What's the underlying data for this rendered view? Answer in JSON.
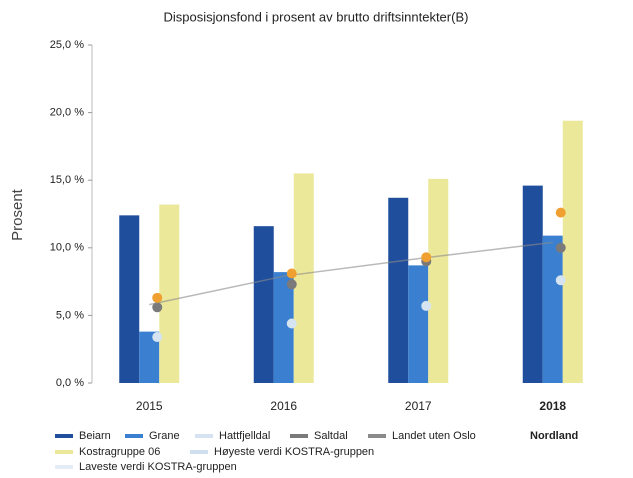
{
  "chart_data": {
    "type": "bar",
    "title": "Disposisjonsfond i prosent av brutto driftsinntekter(B)",
    "y_label": "Prosent",
    "categories": [
      "2015",
      "2016",
      "2017",
      "2018"
    ],
    "ylim": [
      0,
      25
    ],
    "yticks": [
      {
        "value": 0,
        "label": "0,0 %"
      },
      {
        "value": 5,
        "label": "5,0 %"
      },
      {
        "value": 10,
        "label": "10,0 %"
      },
      {
        "value": 15,
        "label": "15,0 %"
      },
      {
        "value": 20,
        "label": "20,0 %"
      },
      {
        "value": 25,
        "label": "25,0 %"
      }
    ],
    "grid": false,
    "series": [
      {
        "name": "Beiarn",
        "color": "#1f4e9c",
        "mark": "bar",
        "values": [
          12.4,
          11.6,
          13.7,
          14.6
        ]
      },
      {
        "name": "Grane",
        "color": "#3a7fd0",
        "mark": "bar",
        "values": [
          3.8,
          8.2,
          8.7,
          10.9
        ]
      },
      {
        "name": "Hattfjelldal",
        "color": "#d6e4f2",
        "mark": "dot",
        "values": [
          3.4,
          4.4,
          5.7,
          7.6
        ]
      },
      {
        "name": "Saltdal",
        "color": "#7a7a7a",
        "mark": "dot",
        "values": [
          5.6,
          7.3,
          9.0,
          10.0
        ]
      },
      {
        "name": "Landet uten Oslo",
        "color": "#8a8a8a",
        "mark": "line",
        "values": [
          5.8,
          7.9,
          9.2,
          10.4
        ]
      },
      {
        "name": "Nordland",
        "color": "#f0a030",
        "mark": "dot",
        "values": [
          6.3,
          8.1,
          9.3,
          12.6
        ]
      },
      {
        "name": "Kostragruppe 06",
        "color": "#ece89a",
        "mark": "bar",
        "values": [
          13.2,
          15.5,
          15.1,
          19.4
        ]
      },
      {
        "name": "Høyeste verdi KOSTRA-gruppen",
        "color": "#cfdff0",
        "mark": "line",
        "values": [
          null,
          null,
          null,
          null
        ]
      },
      {
        "name": "Laveste verdi KOSTRA-gruppen",
        "color": "#e4ecf6",
        "mark": "line",
        "values": [
          null,
          null,
          null,
          null
        ]
      }
    ]
  }
}
